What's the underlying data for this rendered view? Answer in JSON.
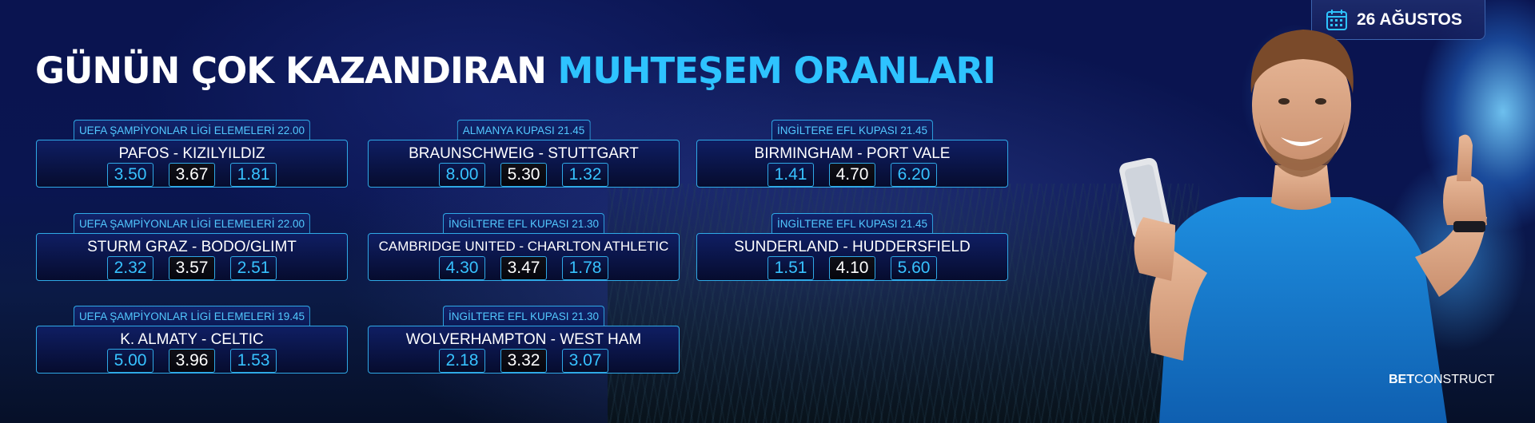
{
  "header": {
    "title_white": "GÜNÜN ÇOK KAZANDIRAN",
    "title_blue": "MUHTEŞEM ORANLARI",
    "date": "26 AĞUSTOS"
  },
  "colors": {
    "accent_blue": "#2ec3ff",
    "border_blue": "#2fa9e6",
    "background": "#07113a"
  },
  "matches": [
    {
      "category": "UEFA ŞAMPİYONLAR LİGİ ELEMELERİ 22.00",
      "teams": "PAFOS - KIZILYILDIZ",
      "odds": [
        "3.50",
        "3.67",
        "1.81"
      ]
    },
    {
      "category": "ALMANYA KUPASI 21.45",
      "teams": "BRAUNSCHWEIG - STUTTGART",
      "odds": [
        "8.00",
        "5.30",
        "1.32"
      ]
    },
    {
      "category": "İNGİLTERE EFL KUPASI 21.45",
      "teams": "BIRMINGHAM - PORT VALE",
      "odds": [
        "1.41",
        "4.70",
        "6.20"
      ]
    },
    {
      "category": "UEFA ŞAMPİYONLAR LİGİ ELEMELERİ 22.00",
      "teams": "STURM GRAZ - BODO/GLIMT",
      "odds": [
        "2.32",
        "3.57",
        "2.51"
      ]
    },
    {
      "category": "İNGİLTERE EFL KUPASI 21.30",
      "teams": "CAMBRIDGE UNITED - CHARLTON ATHLETIC",
      "odds": [
        "4.30",
        "3.47",
        "1.78"
      ]
    },
    {
      "category": "İNGİLTERE EFL KUPASI 21.45",
      "teams": "SUNDERLAND - HUDDERSFIELD",
      "odds": [
        "1.51",
        "4.10",
        "5.60"
      ]
    },
    {
      "category": "UEFA ŞAMPİYONLAR LİGİ ELEMELERİ 19.45",
      "teams": "K. ALMATY - CELTIC",
      "odds": [
        "5.00",
        "3.96",
        "1.53"
      ]
    },
    {
      "category": "İNGİLTERE EFL KUPASI 21.30",
      "teams": "WOLVERHAMPTON - WEST HAM",
      "odds": [
        "2.18",
        "3.32",
        "3.07"
      ]
    }
  ],
  "brand": {
    "bold": "BET",
    "light": "CONSTRUCT"
  },
  "icons": {
    "date": "calendar-icon"
  }
}
